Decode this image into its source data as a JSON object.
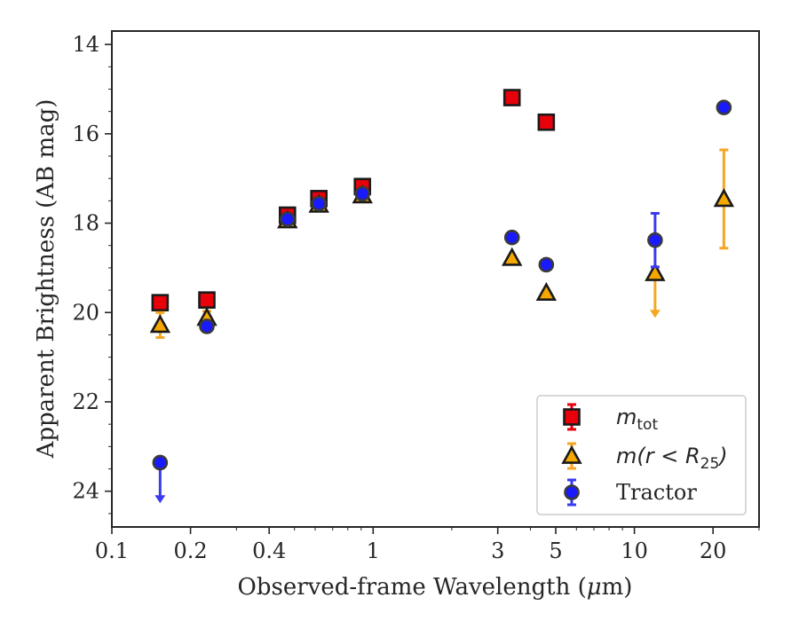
{
  "chart_data": {
    "type": "scatter",
    "xlabel_main": "Observed-frame Wavelength (",
    "xlabel_mu": "μ",
    "xlabel_unit": "m)",
    "ylabel": "Apparent Brightness (AB mag)",
    "xscale": "log",
    "yaxis_inverted": true,
    "xlim": [
      0.1,
      30
    ],
    "ylim": [
      24.8,
      13.7
    ],
    "xticks": [
      {
        "value": 0.1,
        "label": "0.1"
      },
      {
        "value": 0.2,
        "label": "0.2"
      },
      {
        "value": 0.4,
        "label": "0.4"
      },
      {
        "value": 1,
        "label": "1"
      },
      {
        "value": 3,
        "label": "3"
      },
      {
        "value": 5,
        "label": "5"
      },
      {
        "value": 10,
        "label": "10"
      },
      {
        "value": 20,
        "label": "20"
      }
    ],
    "yticks": [
      {
        "value": 14,
        "label": "14"
      },
      {
        "value": 16,
        "label": "16"
      },
      {
        "value": 18,
        "label": "18"
      },
      {
        "value": 20,
        "label": "20"
      },
      {
        "value": 22,
        "label": "22"
      },
      {
        "value": 24,
        "label": "24"
      }
    ],
    "grid": false,
    "legend_position": "lower-right",
    "series": [
      {
        "key": "mtot",
        "label_base": "m",
        "label_sub": "tot",
        "marker": "square",
        "color": "#e8000b",
        "errcolor": "#e8000b",
        "points": [
          {
            "x": 0.153,
            "y": 19.78,
            "err": 0.1
          },
          {
            "x": 0.231,
            "y": 19.72,
            "err": 0.08
          },
          {
            "x": 0.47,
            "y": 17.82,
            "err": 0.05
          },
          {
            "x": 0.62,
            "y": 17.45,
            "err": 0.05
          },
          {
            "x": 0.91,
            "y": 17.18,
            "err": 0.05
          },
          {
            "x": 3.4,
            "y": 15.19,
            "err": 0.04
          },
          {
            "x": 4.6,
            "y": 15.74,
            "err": 0.04
          }
        ]
      },
      {
        "key": "mr25",
        "label_base": "m(r < R",
        "label_sub": "25",
        "label_close": ")",
        "marker": "triangle",
        "color": "#f6a800",
        "errcolor": "#f5a623",
        "points": [
          {
            "x": 0.153,
            "y": 20.28,
            "err": 0.28
          },
          {
            "x": 0.231,
            "y": 20.12,
            "err": 0.15
          },
          {
            "x": 0.47,
            "y": 17.94,
            "err": 0.05
          },
          {
            "x": 0.62,
            "y": 17.59,
            "err": 0.05
          },
          {
            "x": 0.91,
            "y": 17.38,
            "err": 0.05
          },
          {
            "x": 3.4,
            "y": 18.78,
            "err": 0.05
          },
          {
            "x": 4.6,
            "y": 19.56,
            "err": 0.05
          },
          {
            "x": 12.0,
            "y": 19.12,
            "upper_limit": true,
            "limit_to": 20.1
          },
          {
            "x": 22.0,
            "y": 17.46,
            "err": 1.1
          }
        ]
      },
      {
        "key": "tractor",
        "label": "Tractor",
        "marker": "circle",
        "color": "#1a1aff",
        "errcolor": "#3a3af0",
        "points": [
          {
            "x": 0.153,
            "y": 23.36,
            "upper_limit": true,
            "limit_to": 24.25
          },
          {
            "x": 0.231,
            "y": 20.31,
            "err": 0.08
          },
          {
            "x": 0.47,
            "y": 17.91,
            "err": 0.05
          },
          {
            "x": 0.62,
            "y": 17.56,
            "err": 0.05
          },
          {
            "x": 0.91,
            "y": 17.34,
            "err": 0.05
          },
          {
            "x": 3.4,
            "y": 18.32,
            "err": 0.05
          },
          {
            "x": 4.6,
            "y": 18.93,
            "err": 0.05
          },
          {
            "x": 12.0,
            "y": 18.38,
            "err": 0.6
          },
          {
            "x": 22.0,
            "y": 15.41,
            "err": 0.08
          }
        ]
      }
    ]
  }
}
